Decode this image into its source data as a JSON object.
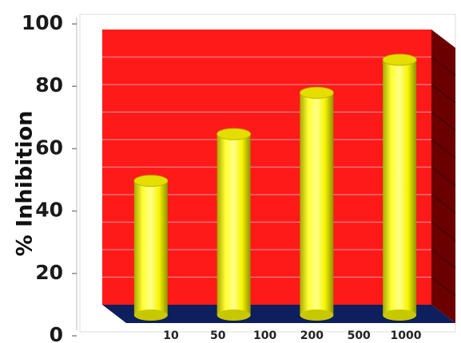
{
  "chart_data": {
    "type": "bar",
    "style": "3d-cylinder",
    "title": "",
    "xlabel": "",
    "ylabel": "% Inhibition",
    "ylim": [
      0,
      100
    ],
    "yticks": [
      "0",
      "20",
      "40",
      "60",
      "80",
      "100"
    ],
    "xtick_labels": [
      "10",
      "50",
      "100",
      "200",
      "500",
      "1000"
    ],
    "categories": [
      "10",
      "100",
      "500",
      "1000"
    ],
    "values": [
      45,
      62,
      77,
      89
    ],
    "grid": true,
    "legend": "none",
    "colors": {
      "wall": "#ff1a1a",
      "side_wall": "#6b0000",
      "floor": "#0d1f5c",
      "bar": "#ffff1a",
      "bar_top": "#e6dd00",
      "grid": "#ff8a8a"
    }
  }
}
